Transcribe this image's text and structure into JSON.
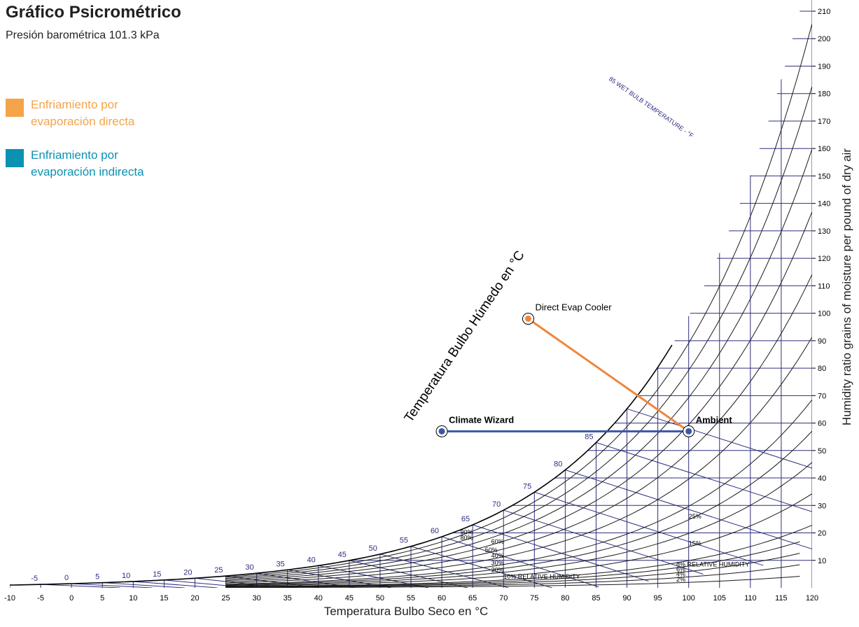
{
  "header": {
    "title": "Gráfico Psicrométrico",
    "subtitle": "Presión barométrica 101.3 kPa"
  },
  "legend": [
    {
      "label_line1": "Enfriamiento por",
      "label_line2": "evaporación directa",
      "color": "#f5a44a"
    },
    {
      "label_line1": "Enfriamiento por",
      "label_line2": "evaporación indirecta",
      "color": "#0b91b2"
    }
  ],
  "colors": {
    "grid": "#2e2f7f",
    "curve": "#1a1a1a",
    "direct": "#f0863c",
    "indirect": "#3a56a6",
    "point": "#3a56a6"
  },
  "chart_data": {
    "type": "scatter",
    "title": "Gráfico Psicrométrico",
    "xlabel": "Temperatura Bulbo Seco en °C",
    "ylabel": "Humidity ratio grains of moisture per pound of dry air",
    "wet_bulb_axis_label": "Temperatura Bulbo Húmedo en °C",
    "xlim": [
      -10,
      120
    ],
    "ylim": [
      0,
      210
    ],
    "x_ticks": [
      -10,
      -5,
      0,
      5,
      10,
      15,
      20,
      25,
      30,
      35,
      40,
      45,
      50,
      55,
      60,
      65,
      70,
      75,
      80,
      85,
      90,
      95,
      100,
      105,
      110,
      115,
      120
    ],
    "y_ticks": [
      10,
      20,
      30,
      40,
      50,
      60,
      70,
      80,
      90,
      100,
      110,
      120,
      130,
      140,
      150,
      160,
      170,
      180,
      190,
      200,
      210
    ],
    "saturation_wet_bulb_labels": [
      -5,
      0,
      5,
      10,
      15,
      20,
      25,
      30,
      35,
      40,
      45,
      50,
      55,
      60,
      65,
      70,
      75,
      80,
      85
    ],
    "wet_bulb_line_labels": [
      0,
      5,
      10,
      15,
      20,
      25,
      30,
      35,
      40,
      45,
      50,
      55,
      60,
      65,
      70,
      75,
      80,
      90
    ],
    "wet_bulb_title": "85 WET BULB TEMPERATURE - °F",
    "rh_labels": [
      "90%",
      "80%",
      "60%",
      "50%",
      "40%",
      "30%",
      "20%",
      "10% RELATIVE HUMIDITY",
      "25%",
      "15%",
      "8% RELATIVE HUMIDITY",
      "6%",
      "4%",
      "2%"
    ],
    "points": [
      {
        "name": "Climate Wizard",
        "x": 60,
        "y": 57
      },
      {
        "name": "Ambient",
        "x": 100,
        "y": 57
      },
      {
        "name": "Direct Evap Cooler",
        "x": 74,
        "y": 98
      }
    ],
    "processes": [
      {
        "type": "direct",
        "from": "Ambient",
        "to": "Direct Evap Cooler"
      },
      {
        "type": "indirect",
        "from": "Ambient",
        "to": "Climate Wizard"
      }
    ]
  }
}
